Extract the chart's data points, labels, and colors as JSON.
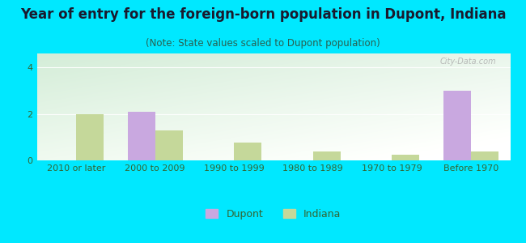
{
  "title": "Year of entry for the foreign-born population in Dupont, Indiana",
  "subtitle": "(Note: State values scaled to Dupont population)",
  "categories": [
    "2010 or later",
    "2000 to 2009",
    "1990 to 1999",
    "1980 to 1989",
    "1970 to 1979",
    "Before 1970"
  ],
  "dupont_values": [
    0,
    2.1,
    0,
    0,
    0,
    3.0
  ],
  "indiana_values": [
    2.0,
    1.3,
    0.75,
    0.4,
    0.25,
    0.4
  ],
  "dupont_color": "#c9a8e0",
  "indiana_color": "#c5d89a",
  "background_outer": "#00e8ff",
  "ylim": [
    0,
    4.6
  ],
  "yticks": [
    0,
    2,
    4
  ],
  "bar_width": 0.35,
  "title_fontsize": 12,
  "subtitle_fontsize": 8.5,
  "tick_fontsize": 8,
  "legend_fontsize": 9,
  "grad_top": "#d4edd8",
  "grad_bottom": "#f0faf0"
}
